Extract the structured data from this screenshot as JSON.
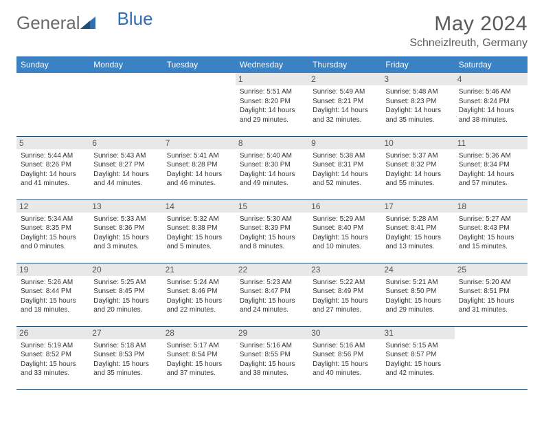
{
  "brand": {
    "part1": "General",
    "part2": "Blue"
  },
  "title": "May 2024",
  "location": "Schneizlreuth, Germany",
  "colors": {
    "header_bg": "#3b82c4",
    "header_text": "#ffffff",
    "daynum_bg": "#e8e8e8",
    "border": "#1f4e79",
    "logo_gray": "#6b6b6b",
    "logo_blue": "#2f6fb0",
    "body_text": "#333333"
  },
  "typography": {
    "title_fontsize": 30,
    "location_fontsize": 16,
    "header_fontsize": 12,
    "cell_fontsize": 10
  },
  "day_headers": [
    "Sunday",
    "Monday",
    "Tuesday",
    "Wednesday",
    "Thursday",
    "Friday",
    "Saturday"
  ],
  "weeks": [
    [
      null,
      null,
      null,
      {
        "n": "1",
        "sr": "Sunrise: 5:51 AM",
        "ss": "Sunset: 8:20 PM",
        "d1": "Daylight: 14 hours",
        "d2": "and 29 minutes."
      },
      {
        "n": "2",
        "sr": "Sunrise: 5:49 AM",
        "ss": "Sunset: 8:21 PM",
        "d1": "Daylight: 14 hours",
        "d2": "and 32 minutes."
      },
      {
        "n": "3",
        "sr": "Sunrise: 5:48 AM",
        "ss": "Sunset: 8:23 PM",
        "d1": "Daylight: 14 hours",
        "d2": "and 35 minutes."
      },
      {
        "n": "4",
        "sr": "Sunrise: 5:46 AM",
        "ss": "Sunset: 8:24 PM",
        "d1": "Daylight: 14 hours",
        "d2": "and 38 minutes."
      }
    ],
    [
      {
        "n": "5",
        "sr": "Sunrise: 5:44 AM",
        "ss": "Sunset: 8:26 PM",
        "d1": "Daylight: 14 hours",
        "d2": "and 41 minutes."
      },
      {
        "n": "6",
        "sr": "Sunrise: 5:43 AM",
        "ss": "Sunset: 8:27 PM",
        "d1": "Daylight: 14 hours",
        "d2": "and 44 minutes."
      },
      {
        "n": "7",
        "sr": "Sunrise: 5:41 AM",
        "ss": "Sunset: 8:28 PM",
        "d1": "Daylight: 14 hours",
        "d2": "and 46 minutes."
      },
      {
        "n": "8",
        "sr": "Sunrise: 5:40 AM",
        "ss": "Sunset: 8:30 PM",
        "d1": "Daylight: 14 hours",
        "d2": "and 49 minutes."
      },
      {
        "n": "9",
        "sr": "Sunrise: 5:38 AM",
        "ss": "Sunset: 8:31 PM",
        "d1": "Daylight: 14 hours",
        "d2": "and 52 minutes."
      },
      {
        "n": "10",
        "sr": "Sunrise: 5:37 AM",
        "ss": "Sunset: 8:32 PM",
        "d1": "Daylight: 14 hours",
        "d2": "and 55 minutes."
      },
      {
        "n": "11",
        "sr": "Sunrise: 5:36 AM",
        "ss": "Sunset: 8:34 PM",
        "d1": "Daylight: 14 hours",
        "d2": "and 57 minutes."
      }
    ],
    [
      {
        "n": "12",
        "sr": "Sunrise: 5:34 AM",
        "ss": "Sunset: 8:35 PM",
        "d1": "Daylight: 15 hours",
        "d2": "and 0 minutes."
      },
      {
        "n": "13",
        "sr": "Sunrise: 5:33 AM",
        "ss": "Sunset: 8:36 PM",
        "d1": "Daylight: 15 hours",
        "d2": "and 3 minutes."
      },
      {
        "n": "14",
        "sr": "Sunrise: 5:32 AM",
        "ss": "Sunset: 8:38 PM",
        "d1": "Daylight: 15 hours",
        "d2": "and 5 minutes."
      },
      {
        "n": "15",
        "sr": "Sunrise: 5:30 AM",
        "ss": "Sunset: 8:39 PM",
        "d1": "Daylight: 15 hours",
        "d2": "and 8 minutes."
      },
      {
        "n": "16",
        "sr": "Sunrise: 5:29 AM",
        "ss": "Sunset: 8:40 PM",
        "d1": "Daylight: 15 hours",
        "d2": "and 10 minutes."
      },
      {
        "n": "17",
        "sr": "Sunrise: 5:28 AM",
        "ss": "Sunset: 8:41 PM",
        "d1": "Daylight: 15 hours",
        "d2": "and 13 minutes."
      },
      {
        "n": "18",
        "sr": "Sunrise: 5:27 AM",
        "ss": "Sunset: 8:43 PM",
        "d1": "Daylight: 15 hours",
        "d2": "and 15 minutes."
      }
    ],
    [
      {
        "n": "19",
        "sr": "Sunrise: 5:26 AM",
        "ss": "Sunset: 8:44 PM",
        "d1": "Daylight: 15 hours",
        "d2": "and 18 minutes."
      },
      {
        "n": "20",
        "sr": "Sunrise: 5:25 AM",
        "ss": "Sunset: 8:45 PM",
        "d1": "Daylight: 15 hours",
        "d2": "and 20 minutes."
      },
      {
        "n": "21",
        "sr": "Sunrise: 5:24 AM",
        "ss": "Sunset: 8:46 PM",
        "d1": "Daylight: 15 hours",
        "d2": "and 22 minutes."
      },
      {
        "n": "22",
        "sr": "Sunrise: 5:23 AM",
        "ss": "Sunset: 8:47 PM",
        "d1": "Daylight: 15 hours",
        "d2": "and 24 minutes."
      },
      {
        "n": "23",
        "sr": "Sunrise: 5:22 AM",
        "ss": "Sunset: 8:49 PM",
        "d1": "Daylight: 15 hours",
        "d2": "and 27 minutes."
      },
      {
        "n": "24",
        "sr": "Sunrise: 5:21 AM",
        "ss": "Sunset: 8:50 PM",
        "d1": "Daylight: 15 hours",
        "d2": "and 29 minutes."
      },
      {
        "n": "25",
        "sr": "Sunrise: 5:20 AM",
        "ss": "Sunset: 8:51 PM",
        "d1": "Daylight: 15 hours",
        "d2": "and 31 minutes."
      }
    ],
    [
      {
        "n": "26",
        "sr": "Sunrise: 5:19 AM",
        "ss": "Sunset: 8:52 PM",
        "d1": "Daylight: 15 hours",
        "d2": "and 33 minutes."
      },
      {
        "n": "27",
        "sr": "Sunrise: 5:18 AM",
        "ss": "Sunset: 8:53 PM",
        "d1": "Daylight: 15 hours",
        "d2": "and 35 minutes."
      },
      {
        "n": "28",
        "sr": "Sunrise: 5:17 AM",
        "ss": "Sunset: 8:54 PM",
        "d1": "Daylight: 15 hours",
        "d2": "and 37 minutes."
      },
      {
        "n": "29",
        "sr": "Sunrise: 5:16 AM",
        "ss": "Sunset: 8:55 PM",
        "d1": "Daylight: 15 hours",
        "d2": "and 38 minutes."
      },
      {
        "n": "30",
        "sr": "Sunrise: 5:16 AM",
        "ss": "Sunset: 8:56 PM",
        "d1": "Daylight: 15 hours",
        "d2": "and 40 minutes."
      },
      {
        "n": "31",
        "sr": "Sunrise: 5:15 AM",
        "ss": "Sunset: 8:57 PM",
        "d1": "Daylight: 15 hours",
        "d2": "and 42 minutes."
      },
      null
    ]
  ]
}
